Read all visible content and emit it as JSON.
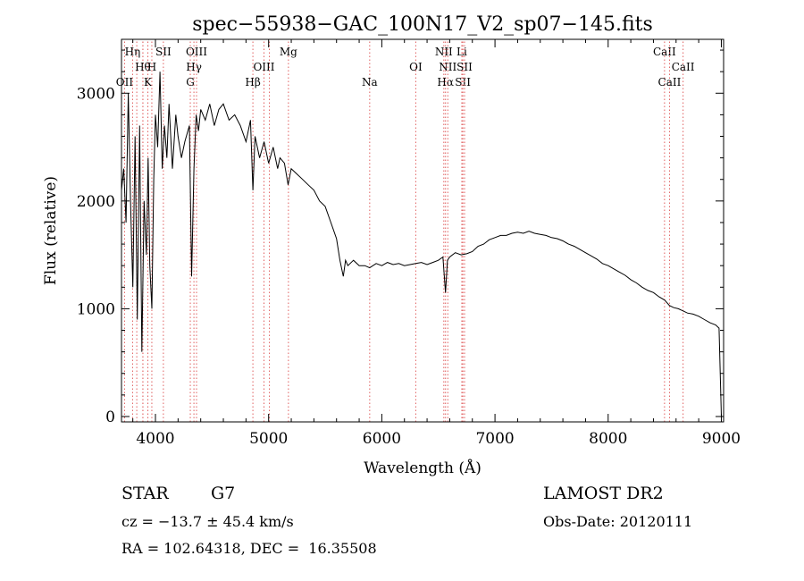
{
  "chart_data": {
    "type": "line",
    "title": "spec−55938−GAC_100N17_V2_sp07−145.fits",
    "xlabel": "Wavelength (Å)",
    "ylabel": "Flux (relative)",
    "xlim": [
      3700,
      9020
    ],
    "ylim": [
      -50,
      3500
    ],
    "xticks": [
      4000,
      5000,
      6000,
      7000,
      8000,
      9000
    ],
    "yticks": [
      0,
      1000,
      2000,
      3000
    ],
    "grid": false,
    "series": [
      {
        "x": [
          3700,
          3720,
          3740,
          3760,
          3780,
          3800,
          3820,
          3840,
          3860,
          3880,
          3900,
          3920,
          3935,
          3950,
          3968,
          3985,
          4000,
          4020,
          4040,
          4060,
          4080,
          4101,
          4120,
          4150,
          4180,
          4200,
          4230,
          4260,
          4300,
          4320,
          4340,
          4360,
          4380,
          4400,
          4440,
          4480,
          4520,
          4560,
          4600,
          4650,
          4700,
          4750,
          4800,
          4840,
          4861,
          4880,
          4920,
          4960,
          5000,
          5040,
          5080,
          5100,
          5140,
          5172,
          5200,
          5250,
          5300,
          5350,
          5400,
          5450,
          5500,
          5550,
          5600,
          5630,
          5660,
          5680,
          5700,
          5750,
          5800,
          5850,
          5893,
          5950,
          6000,
          6050,
          6100,
          6150,
          6200,
          6250,
          6300,
          6350,
          6400,
          6450,
          6500,
          6540,
          6563,
          6580,
          6600,
          6650,
          6700,
          6750,
          6800,
          6850,
          6900,
          6950,
          7000,
          7050,
          7100,
          7150,
          7200,
          7250,
          7300,
          7350,
          7400,
          7450,
          7500,
          7550,
          7600,
          7650,
          7700,
          7750,
          7800,
          7850,
          7900,
          7950,
          8000,
          8050,
          8100,
          8150,
          8200,
          8250,
          8300,
          8350,
          8400,
          8450,
          8500,
          8542,
          8580,
          8620,
          8662,
          8700,
          8750,
          8800,
          8850,
          8900,
          8950,
          8980,
          9000
        ],
        "y": [
          2100,
          2300,
          1800,
          3000,
          2000,
          1200,
          2600,
          900,
          2700,
          600,
          2000,
          1500,
          2400,
          1400,
          1000,
          2200,
          2800,
          2500,
          3200,
          2300,
          2700,
          2400,
          2900,
          2300,
          2800,
          2600,
          2400,
          2550,
          2700,
          1300,
          2300,
          2800,
          2650,
          2850,
          2750,
          2900,
          2700,
          2850,
          2900,
          2750,
          2800,
          2700,
          2550,
          2750,
          2100,
          2600,
          2400,
          2550,
          2350,
          2500,
          2300,
          2400,
          2350,
          2150,
          2300,
          2250,
          2200,
          2150,
          2100,
          2000,
          1950,
          1800,
          1650,
          1450,
          1300,
          1450,
          1400,
          1450,
          1400,
          1400,
          1380,
          1420,
          1400,
          1430,
          1410,
          1420,
          1400,
          1410,
          1420,
          1430,
          1410,
          1430,
          1450,
          1480,
          1150,
          1450,
          1480,
          1520,
          1500,
          1510,
          1530,
          1580,
          1600,
          1640,
          1660,
          1680,
          1680,
          1700,
          1710,
          1700,
          1720,
          1700,
          1690,
          1680,
          1660,
          1650,
          1630,
          1600,
          1580,
          1550,
          1520,
          1490,
          1460,
          1420,
          1400,
          1370,
          1340,
          1310,
          1270,
          1240,
          1200,
          1170,
          1150,
          1110,
          1080,
          1030,
          1010,
          1000,
          980,
          960,
          950,
          930,
          900,
          870,
          850,
          820,
          0
        ]
      }
    ],
    "annotations": [
      {
        "wavelength": 3727,
        "label": "OII",
        "row": 3
      },
      {
        "wavelength": 3798,
        "label": "Hη",
        "row": 1
      },
      {
        "wavelength": 3835,
        "label": "",
        "row": 1
      },
      {
        "wavelength": 3889,
        "label": "",
        "row": 1
      },
      {
        "wavelength": 3889,
        "label": "Hθ",
        "row": 2
      },
      {
        "wavelength": 3933,
        "label": "K",
        "row": 3
      },
      {
        "wavelength": 3968,
        "label": "H",
        "row": 2
      },
      {
        "wavelength": 4070,
        "label": "SII",
        "row": 1
      },
      {
        "wavelength": 4308,
        "label": "G",
        "row": 3
      },
      {
        "wavelength": 4340,
        "label": "Hγ",
        "row": 2
      },
      {
        "wavelength": 4363,
        "label": "OIII",
        "row": 1
      },
      {
        "wavelength": 4861,
        "label": "Hβ",
        "row": 3
      },
      {
        "wavelength": 4959,
        "label": "OIII",
        "row": 2
      },
      {
        "wavelength": 5007,
        "label": "",
        "row": 2
      },
      {
        "wavelength": 5175,
        "label": "Mg",
        "row": 1
      },
      {
        "wavelength": 5893,
        "label": "Na",
        "row": 3
      },
      {
        "wavelength": 6300,
        "label": "OI",
        "row": 2
      },
      {
        "wavelength": 6548,
        "label": "NII",
        "row": 1
      },
      {
        "wavelength": 6563,
        "label": "Hα",
        "row": 3
      },
      {
        "wavelength": 6583,
        "label": "NII",
        "row": 2
      },
      {
        "wavelength": 6707,
        "label": "Li",
        "row": 1
      },
      {
        "wavelength": 6716,
        "label": "SII",
        "row": 3
      },
      {
        "wavelength": 6731,
        "label": "SII",
        "row": 2
      },
      {
        "wavelength": 8498,
        "label": "CaII",
        "row": 1
      },
      {
        "wavelength": 8542,
        "label": "CaII",
        "row": 3
      },
      {
        "wavelength": 8662,
        "label": "CaII",
        "row": 2
      }
    ]
  },
  "info": {
    "class": "STAR",
    "subclass": "G7",
    "survey": "LAMOST DR2",
    "redshift": "cz = −13.7 ± 45.4 km/s",
    "obsdate": "Obs-Date: 20120111",
    "coords": "RA = 102.64318, DEC =  16.35508"
  }
}
